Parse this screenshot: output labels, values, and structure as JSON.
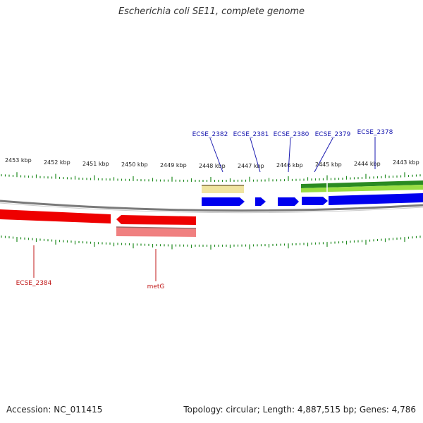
{
  "title": "Escherichia coli SE11, complete genome",
  "footer": {
    "accession": "Accession: NC_011415",
    "summary": "Topology: circular; Length: 4,887,515 bp; Genes: 4,786"
  },
  "scale": {
    "labels": [
      "2453 kbp",
      "2452 kbp",
      "2451 kbp",
      "2450 kbp",
      "2449 kbp",
      "2448 kbp",
      "2447 kbp",
      "2446 kbp",
      "2445 kbp",
      "2444 kbp",
      "2443 kbp"
    ]
  },
  "genes_top": [
    "ECSE_2382",
    "ECSE_2381",
    "ECSE_2380",
    "ECSE_2379",
    "ECSE_2378"
  ],
  "genes_bottom": [
    "ECSE_2384",
    "metG"
  ],
  "colors": {
    "forward_cds": "#0000ee",
    "reverse_cds": "#ee0000",
    "backbone": "#888888",
    "tick": "#228b22",
    "feature_yellow": "#f0e4a0",
    "feature_green": "#22aa22",
    "feature_lightgreen": "#99dd44"
  }
}
